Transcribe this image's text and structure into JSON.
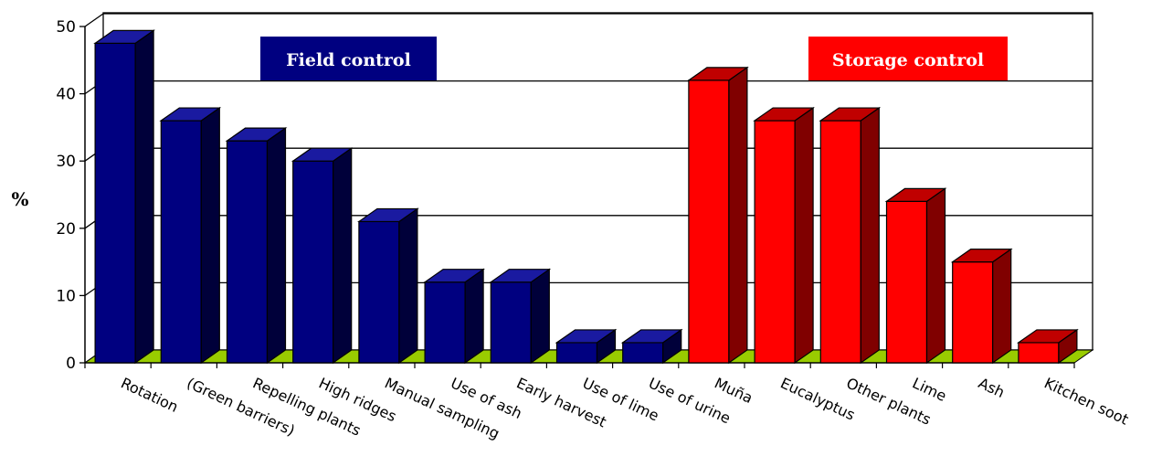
{
  "chart_data": {
    "type": "bar",
    "ylabel": "%",
    "ylim": [
      0,
      50
    ],
    "yticks": [
      "0",
      "10",
      "20",
      "30",
      "40",
      "50"
    ],
    "grid": true,
    "categories": [
      "Rotation",
      "(Green barriers)",
      "Repelling plants",
      "High ridges",
      "Manual sampling",
      "Use of ash",
      "Early harvest",
      "Use of lime",
      "Use of urine",
      "Muña",
      "Eucalyptus",
      "Other plants",
      "Lime",
      "Ash",
      "Kitchen soot"
    ],
    "values": [
      47.5,
      36,
      33,
      30,
      21,
      12,
      12,
      3,
      3,
      42,
      36,
      36,
      24,
      15,
      3
    ],
    "groups": [
      {
        "name": "Field control",
        "start": 0,
        "end": 8,
        "color": "#000080",
        "side_color": "#00003a",
        "top_color": "#1a1aa0"
      },
      {
        "name": "Storage control",
        "start": 9,
        "end": 14,
        "color": "#ff0000",
        "side_color": "#800000",
        "top_color": "#c00000"
      }
    ],
    "floor_color": "#99cc00"
  }
}
